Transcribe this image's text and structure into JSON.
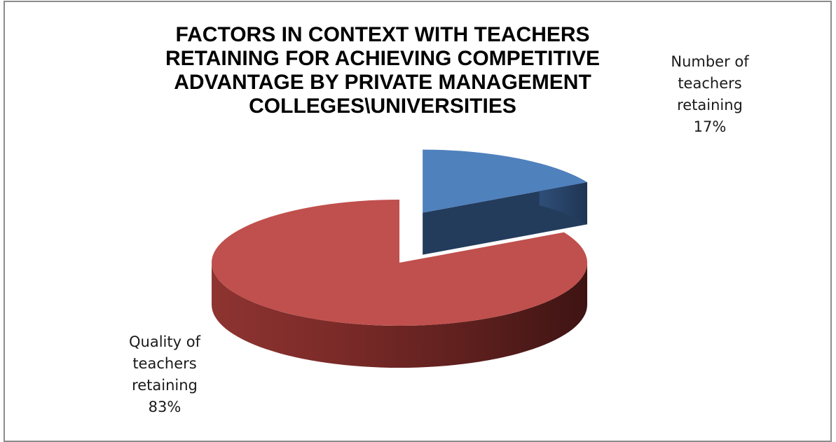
{
  "chart_data": {
    "type": "pie",
    "title_lines": [
      "FACTORS IN CONTEXT WITH TEACHERS",
      "RETAINING FOR ACHIEVING COMPETITIVE",
      "ADVANTAGE BY PRIVATE MANAGEMENT",
      "COLLEGES\\UNIVERSITIES"
    ],
    "slices": [
      {
        "label_lines": [
          "Number of",
          "teachers",
          "retaining"
        ],
        "percent_label": "17%",
        "value": 17,
        "color": "#4f81bd",
        "exploded": true
      },
      {
        "label_lines": [
          "Quality of",
          "teachers",
          "retaining"
        ],
        "percent_label": "83%",
        "value": 83,
        "color": "#c0504d",
        "exploded": false
      }
    ],
    "style": "3d-exploded",
    "legend": "none"
  }
}
